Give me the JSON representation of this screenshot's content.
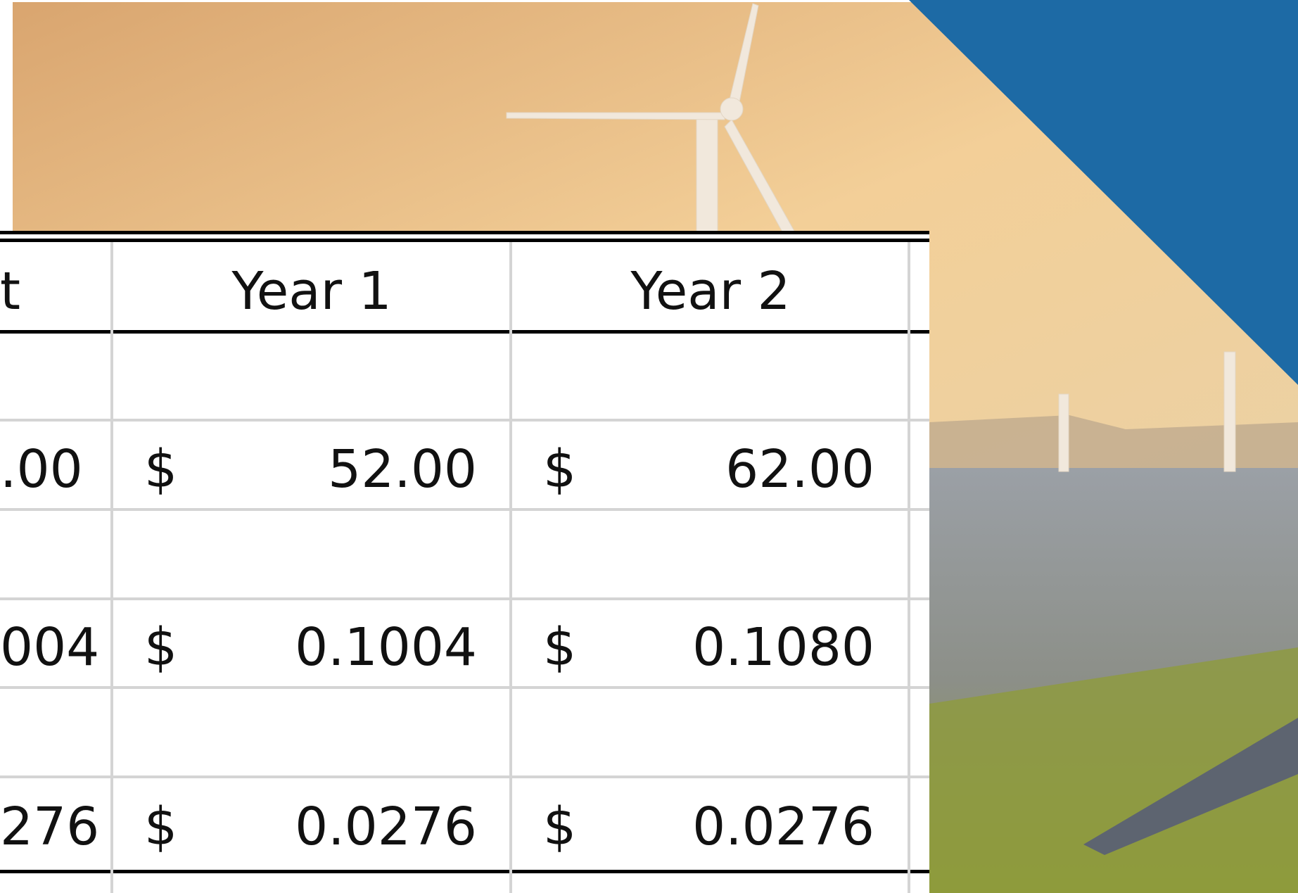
{
  "table": {
    "header": [
      "t",
      "Year 1",
      "Year 2"
    ],
    "rows": [
      [
        ".00",
        "$",
        "52.00",
        "$",
        "62.00"
      ],
      [
        "004",
        "$",
        "0.1004",
        "$",
        "0.1080"
      ],
      [
        "276",
        "$",
        "0.0276",
        "$",
        "0.0276"
      ]
    ]
  }
}
